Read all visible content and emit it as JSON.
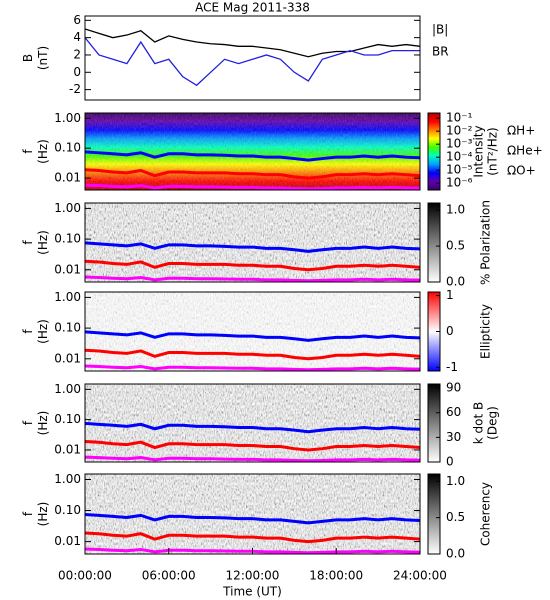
{
  "chart_data": [
    {
      "type": "line",
      "title": "ACE Mag 2011-338",
      "ylabel": [
        "B",
        "(nT)"
      ],
      "ylim": [
        -3.2,
        6.5
      ],
      "yticks": [
        -2,
        0,
        2,
        4,
        6
      ],
      "xlim": [
        0,
        24
      ],
      "x": [
        0,
        1,
        2,
        3,
        4,
        5,
        6,
        7,
        8,
        9,
        10,
        11,
        12,
        13,
        14,
        15,
        16,
        17,
        18,
        19,
        20,
        21,
        22,
        23,
        24
      ],
      "series": [
        {
          "name": "|B|",
          "color": "#000000",
          "values": [
            5,
            4.5,
            4,
            4.3,
            4.8,
            3.5,
            4.2,
            3.8,
            3.5,
            3.3,
            3.2,
            3,
            3,
            2.8,
            2.6,
            2.2,
            1.8,
            2.2,
            2.4,
            2.4,
            2.8,
            3.2,
            3,
            3.2,
            3
          ]
        },
        {
          "name": "BR",
          "color": "#2020e0",
          "values": [
            4,
            2,
            1.5,
            1,
            3.5,
            1,
            1.5,
            -0.5,
            -1.5,
            0,
            1.5,
            1,
            1.5,
            2,
            1.5,
            0,
            -1,
            1.5,
            2,
            2.5,
            2,
            2,
            2.5,
            2.5,
            2.5
          ]
        }
      ]
    },
    {
      "type": "spectrogram",
      "ylabel": [
        "f",
        "(Hz)"
      ],
      "ylog": true,
      "ylim": [
        0.004,
        1.5
      ],
      "yticks": [
        {
          "value": 1,
          "label": "1.00"
        },
        {
          "value": 0.1,
          "label": "0.10"
        },
        {
          "value": 0.01,
          "label": "0.01"
        }
      ],
      "xlim": [
        0,
        24
      ],
      "x": [
        0,
        1,
        2,
        3,
        4,
        5,
        6,
        7,
        8,
        9,
        10,
        11,
        12,
        13,
        14,
        15,
        16,
        17,
        18,
        19,
        20,
        21,
        22,
        23,
        24
      ],
      "colorbar": {
        "label": [
          "Intensity",
          "(nT²/Hz)"
        ],
        "log": true,
        "clim": [
          3e-07,
          0.25
        ],
        "colors": [
          "#3a0060",
          "#6000b0",
          "#0000ff",
          "#00a0ff",
          "#00ffc0",
          "#40ff00",
          "#ffff00",
          "#ff8000",
          "#ff0000",
          "#b00000"
        ],
        "ticks": [
          {
            "value": 0.1,
            "label": "10⁻¹"
          },
          {
            "value": 0.01,
            "label": "10⁻²"
          },
          {
            "value": 0.001,
            "label": "10⁻³"
          },
          {
            "value": 0.0001,
            "label": "10⁻⁴"
          },
          {
            "value": 1e-05,
            "label": "10⁻⁵"
          },
          {
            "value": 1e-06,
            "label": "10⁻⁶"
          }
        ]
      },
      "series": [
        {
          "name": "ΩH+",
          "color": "#0000ff",
          "values": [
            0.075,
            0.07,
            0.065,
            0.06,
            0.07,
            0.05,
            0.065,
            0.065,
            0.06,
            0.06,
            0.058,
            0.055,
            0.055,
            0.05,
            0.05,
            0.045,
            0.04,
            0.045,
            0.05,
            0.05,
            0.055,
            0.05,
            0.055,
            0.05,
            0.048
          ]
        },
        {
          "name": "ΩHe+",
          "color": "#ff0000",
          "values": [
            0.019,
            0.018,
            0.016,
            0.015,
            0.018,
            0.012,
            0.016,
            0.016,
            0.015,
            0.015,
            0.015,
            0.014,
            0.014,
            0.013,
            0.013,
            0.011,
            0.01,
            0.011,
            0.013,
            0.013,
            0.014,
            0.013,
            0.014,
            0.013,
            0.012
          ]
        },
        {
          "name": "ΩO+",
          "color": "#ff00ff",
          "values": [
            0.0058,
            0.0056,
            0.0053,
            0.0051,
            0.0056,
            0.0047,
            0.0053,
            0.0053,
            0.0051,
            0.0051,
            0.005,
            0.0049,
            0.0049,
            0.0047,
            0.0047,
            0.0045,
            0.0044,
            0.0045,
            0.0047,
            0.0047,
            0.0049,
            0.0047,
            0.0049,
            0.0047,
            0.0046
          ]
        }
      ]
    },
    {
      "type": "spectrogram",
      "ylabel": [
        "f",
        "(Hz)"
      ],
      "ylog": true,
      "ylim": [
        0.004,
        1.5
      ],
      "yticks": [
        {
          "value": 1,
          "label": "1.00"
        },
        {
          "value": 0.1,
          "label": "0.10"
        },
        {
          "value": 0.01,
          "label": "0.01"
        }
      ],
      "xlim": [
        0,
        24
      ],
      "x": [
        0,
        1,
        2,
        3,
        4,
        5,
        6,
        7,
        8,
        9,
        10,
        11,
        12,
        13,
        14,
        15,
        16,
        17,
        18,
        19,
        20,
        21,
        22,
        23,
        24
      ],
      "colorbar": {
        "label": [
          "% Polarization"
        ],
        "clim": [
          0,
          1.1
        ],
        "colors": [
          "#ffffff",
          "#000000"
        ],
        "ticks": [
          {
            "value": 0,
            "label": "0.0"
          },
          {
            "value": 0.5,
            "label": "0.5"
          },
          {
            "value": 1,
            "label": "1.0"
          }
        ]
      },
      "series": [
        {
          "color": "#0000ff",
          "values": [
            0.075,
            0.07,
            0.065,
            0.06,
            0.07,
            0.05,
            0.065,
            0.065,
            0.06,
            0.06,
            0.058,
            0.055,
            0.055,
            0.05,
            0.05,
            0.045,
            0.04,
            0.045,
            0.05,
            0.05,
            0.055,
            0.05,
            0.055,
            0.05,
            0.048
          ]
        },
        {
          "color": "#ff0000",
          "values": [
            0.019,
            0.018,
            0.016,
            0.015,
            0.018,
            0.012,
            0.016,
            0.016,
            0.015,
            0.015,
            0.015,
            0.014,
            0.014,
            0.013,
            0.013,
            0.011,
            0.01,
            0.011,
            0.013,
            0.013,
            0.014,
            0.013,
            0.014,
            0.013,
            0.012
          ]
        },
        {
          "color": "#ff00ff",
          "values": [
            0.0058,
            0.0056,
            0.0053,
            0.0051,
            0.0056,
            0.0047,
            0.0053,
            0.0053,
            0.0051,
            0.0051,
            0.005,
            0.0049,
            0.0049,
            0.0047,
            0.0047,
            0.0045,
            0.0044,
            0.0045,
            0.0047,
            0.0047,
            0.0049,
            0.0047,
            0.0049,
            0.0047,
            0.0046
          ]
        }
      ]
    },
    {
      "type": "spectrogram",
      "ylabel": [
        "f",
        "(Hz)"
      ],
      "ylog": true,
      "ylim": [
        0.004,
        1.5
      ],
      "yticks": [
        {
          "value": 1,
          "label": "1.00"
        },
        {
          "value": 0.1,
          "label": "0.10"
        },
        {
          "value": 0.01,
          "label": "0.01"
        }
      ],
      "xlim": [
        0,
        24
      ],
      "x": [
        0,
        1,
        2,
        3,
        4,
        5,
        6,
        7,
        8,
        9,
        10,
        11,
        12,
        13,
        14,
        15,
        16,
        17,
        18,
        19,
        20,
        21,
        22,
        23,
        24
      ],
      "colorbar": {
        "label": [
          "Ellipticity"
        ],
        "clim": [
          -1.1,
          1.1
        ],
        "colors": [
          "#0000ff",
          "#ffffff",
          "#ff0000"
        ],
        "ticks": [
          -1,
          0,
          1
        ]
      },
      "series": [
        {
          "color": "#0000ff",
          "values": [
            0.075,
            0.07,
            0.065,
            0.06,
            0.07,
            0.05,
            0.065,
            0.065,
            0.06,
            0.06,
            0.058,
            0.055,
            0.055,
            0.05,
            0.05,
            0.045,
            0.04,
            0.045,
            0.05,
            0.05,
            0.055,
            0.05,
            0.055,
            0.05,
            0.048
          ]
        },
        {
          "color": "#ff0000",
          "values": [
            0.019,
            0.018,
            0.016,
            0.015,
            0.018,
            0.012,
            0.016,
            0.016,
            0.015,
            0.015,
            0.015,
            0.014,
            0.014,
            0.013,
            0.013,
            0.011,
            0.01,
            0.011,
            0.013,
            0.013,
            0.014,
            0.013,
            0.014,
            0.013,
            0.012
          ]
        },
        {
          "color": "#ff00ff",
          "values": [
            0.0058,
            0.0056,
            0.0053,
            0.0051,
            0.0056,
            0.0047,
            0.0053,
            0.0053,
            0.0051,
            0.0051,
            0.005,
            0.0049,
            0.0049,
            0.0047,
            0.0047,
            0.0045,
            0.0044,
            0.0045,
            0.0047,
            0.0047,
            0.0049,
            0.0047,
            0.0049,
            0.0047,
            0.0046
          ]
        }
      ]
    },
    {
      "type": "spectrogram",
      "ylabel": [
        "f",
        "(Hz)"
      ],
      "ylog": true,
      "ylim": [
        0.004,
        1.5
      ],
      "yticks": [
        {
          "value": 1,
          "label": "1.00"
        },
        {
          "value": 0.1,
          "label": "0.10"
        },
        {
          "value": 0.01,
          "label": "0.01"
        }
      ],
      "xlim": [
        0,
        24
      ],
      "x": [
        0,
        1,
        2,
        3,
        4,
        5,
        6,
        7,
        8,
        9,
        10,
        11,
        12,
        13,
        14,
        15,
        16,
        17,
        18,
        19,
        20,
        21,
        22,
        23,
        24
      ],
      "colorbar": {
        "label": [
          "k dot B",
          "(Deg)"
        ],
        "clim": [
          0,
          95
        ],
        "colors": [
          "#ffffff",
          "#000000"
        ],
        "ticks": [
          0,
          30,
          60,
          90
        ]
      },
      "series": [
        {
          "color": "#0000ff",
          "values": [
            0.075,
            0.07,
            0.065,
            0.06,
            0.07,
            0.05,
            0.065,
            0.065,
            0.06,
            0.06,
            0.058,
            0.055,
            0.055,
            0.05,
            0.05,
            0.045,
            0.04,
            0.045,
            0.05,
            0.05,
            0.055,
            0.05,
            0.055,
            0.05,
            0.048
          ]
        },
        {
          "color": "#ff0000",
          "values": [
            0.019,
            0.018,
            0.016,
            0.015,
            0.018,
            0.012,
            0.016,
            0.016,
            0.015,
            0.015,
            0.015,
            0.014,
            0.014,
            0.013,
            0.013,
            0.011,
            0.01,
            0.011,
            0.013,
            0.013,
            0.014,
            0.013,
            0.014,
            0.013,
            0.012
          ]
        },
        {
          "color": "#ff00ff",
          "values": [
            0.0058,
            0.0056,
            0.0053,
            0.0051,
            0.0056,
            0.0047,
            0.0053,
            0.0053,
            0.0051,
            0.0051,
            0.005,
            0.0049,
            0.0049,
            0.0047,
            0.0047,
            0.0045,
            0.0044,
            0.0045,
            0.0047,
            0.0047,
            0.0049,
            0.0047,
            0.0049,
            0.0047,
            0.0046
          ]
        }
      ]
    },
    {
      "type": "spectrogram",
      "ylabel": [
        "f",
        "(Hz)"
      ],
      "ylog": true,
      "ylim": [
        0.004,
        1.5
      ],
      "yticks": [
        {
          "value": 1,
          "label": "1.00"
        },
        {
          "value": 0.1,
          "label": "0.10"
        },
        {
          "value": 0.01,
          "label": "0.01"
        }
      ],
      "xlim": [
        0,
        24
      ],
      "x": [
        0,
        1,
        2,
        3,
        4,
        5,
        6,
        7,
        8,
        9,
        10,
        11,
        12,
        13,
        14,
        15,
        16,
        17,
        18,
        19,
        20,
        21,
        22,
        23,
        24
      ],
      "xticks": [
        {
          "value": 0,
          "label": "00:00:00"
        },
        {
          "value": 6,
          "label": "06:00:00"
        },
        {
          "value": 12,
          "label": "12:00:00"
        },
        {
          "value": 18,
          "label": "18:00:00"
        },
        {
          "value": 24,
          "label": "24:00:00"
        }
      ],
      "xlabel": "Time (UT)",
      "colorbar": {
        "label": [
          "Coherency"
        ],
        "clim": [
          0,
          1.1
        ],
        "colors": [
          "#ffffff",
          "#000000"
        ],
        "ticks": [
          {
            "value": 0,
            "label": "0.0"
          },
          {
            "value": 0.5,
            "label": "0.5"
          },
          {
            "value": 1,
            "label": "1.0"
          }
        ]
      },
      "series": [
        {
          "color": "#0000ff",
          "values": [
            0.075,
            0.07,
            0.065,
            0.06,
            0.07,
            0.05,
            0.065,
            0.065,
            0.06,
            0.06,
            0.058,
            0.055,
            0.055,
            0.05,
            0.05,
            0.045,
            0.04,
            0.045,
            0.05,
            0.05,
            0.055,
            0.05,
            0.055,
            0.05,
            0.048
          ]
        },
        {
          "color": "#ff0000",
          "values": [
            0.019,
            0.018,
            0.016,
            0.015,
            0.018,
            0.012,
            0.016,
            0.016,
            0.015,
            0.015,
            0.015,
            0.014,
            0.014,
            0.013,
            0.013,
            0.011,
            0.01,
            0.011,
            0.013,
            0.013,
            0.014,
            0.013,
            0.014,
            0.013,
            0.012
          ]
        },
        {
          "color": "#ff00ff",
          "values": [
            0.0058,
            0.0056,
            0.0053,
            0.0051,
            0.0056,
            0.0047,
            0.0053,
            0.0053,
            0.0051,
            0.0051,
            0.005,
            0.0049,
            0.0049,
            0.0047,
            0.0047,
            0.0045,
            0.0044,
            0.0045,
            0.0047,
            0.0047,
            0.0049,
            0.0047,
            0.0049,
            0.0047,
            0.0046
          ]
        }
      ]
    }
  ]
}
